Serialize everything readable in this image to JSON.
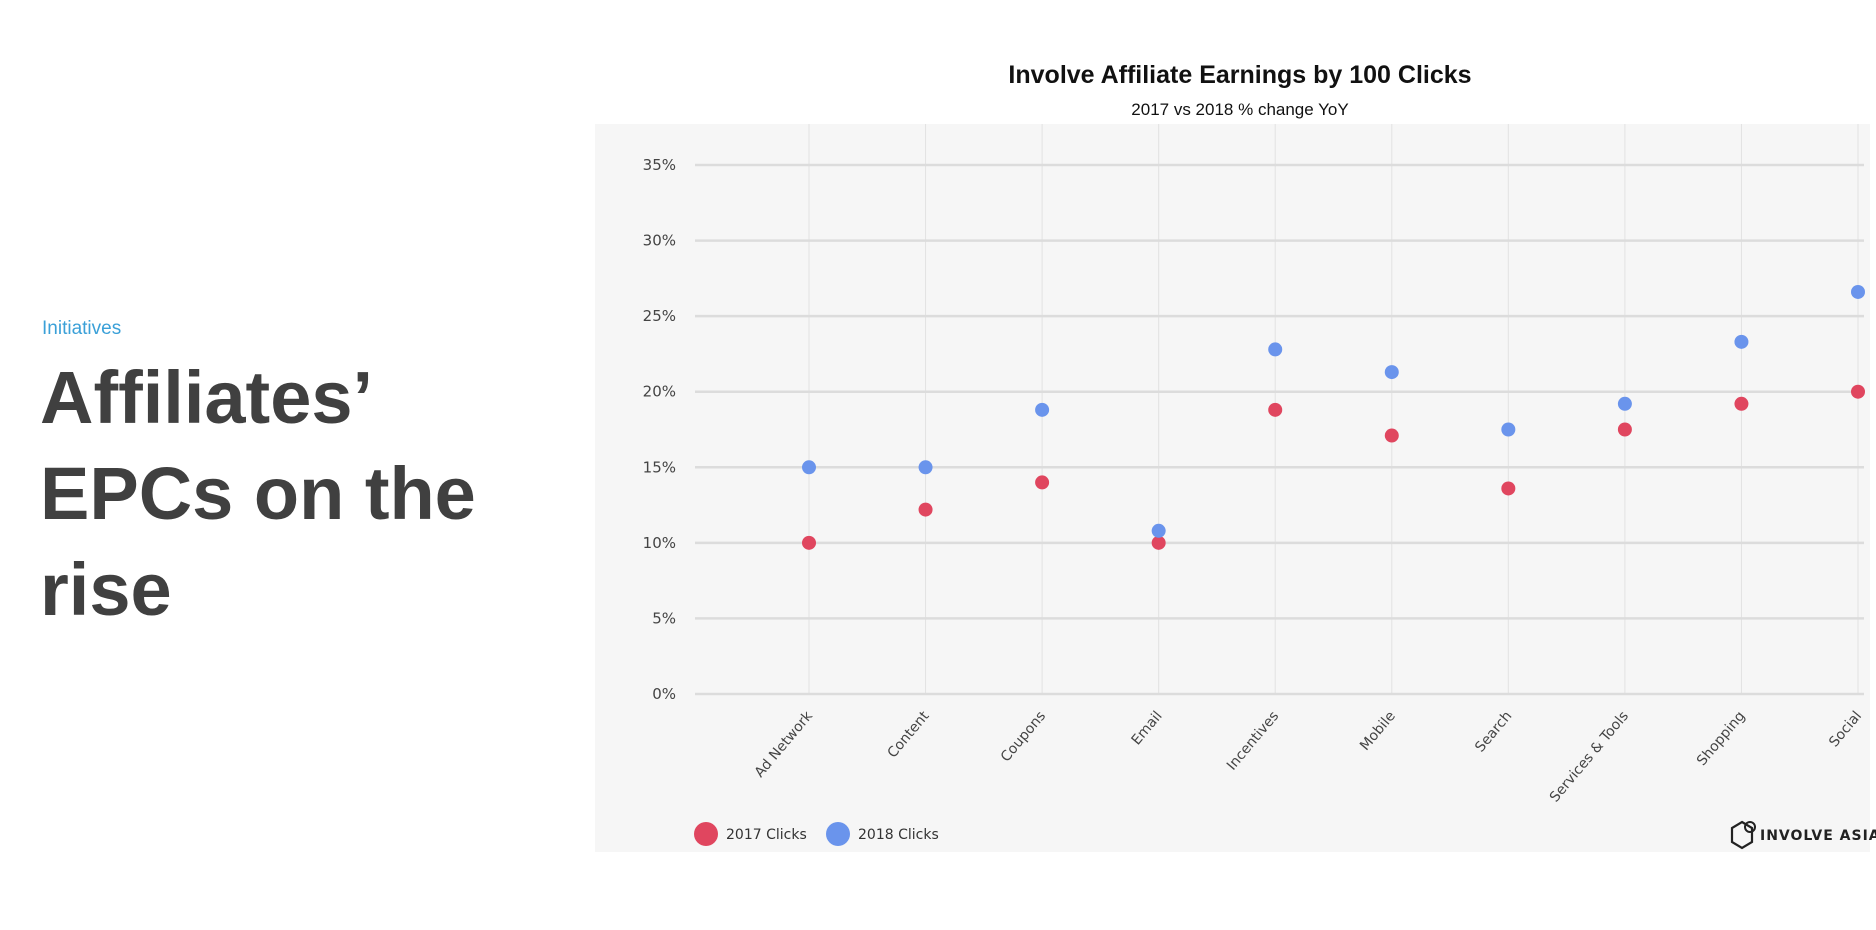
{
  "slide": {
    "section_label": "Initiatives",
    "headline": "Affiliates’ EPCs on the rise"
  },
  "chart_data": {
    "type": "scatter",
    "title": "Involve Affiliate Earnings by 100 Clicks",
    "subtitle": "2017 vs 2018 % change YoY",
    "xlabel": "",
    "ylabel": "",
    "categories": [
      "Ad Network",
      "Content",
      "Coupons",
      "Email",
      "Incentives",
      "Mobile",
      "Search",
      "Services & Tools",
      "Shopping",
      "Social"
    ],
    "y_ticks": [
      "0%",
      "5%",
      "10%",
      "15%",
      "20%",
      "25%",
      "30%",
      "35%"
    ],
    "ylim": [
      0,
      35
    ],
    "grid": true,
    "legend_position": "bottom-left",
    "series": [
      {
        "name": "2017 Clicks",
        "color": "#e0465f",
        "values": [
          10,
          12.2,
          14,
          10,
          18.8,
          17.1,
          13.6,
          17.5,
          19.2,
          20
        ]
      },
      {
        "name": "2018 Clicks",
        "color": "#6a94ec",
        "values": [
          15,
          15,
          18.8,
          10.8,
          22.8,
          21.3,
          17.5,
          19.2,
          23.3,
          26.6
        ]
      }
    ],
    "logo_text": "INVOLVE ASIA"
  }
}
